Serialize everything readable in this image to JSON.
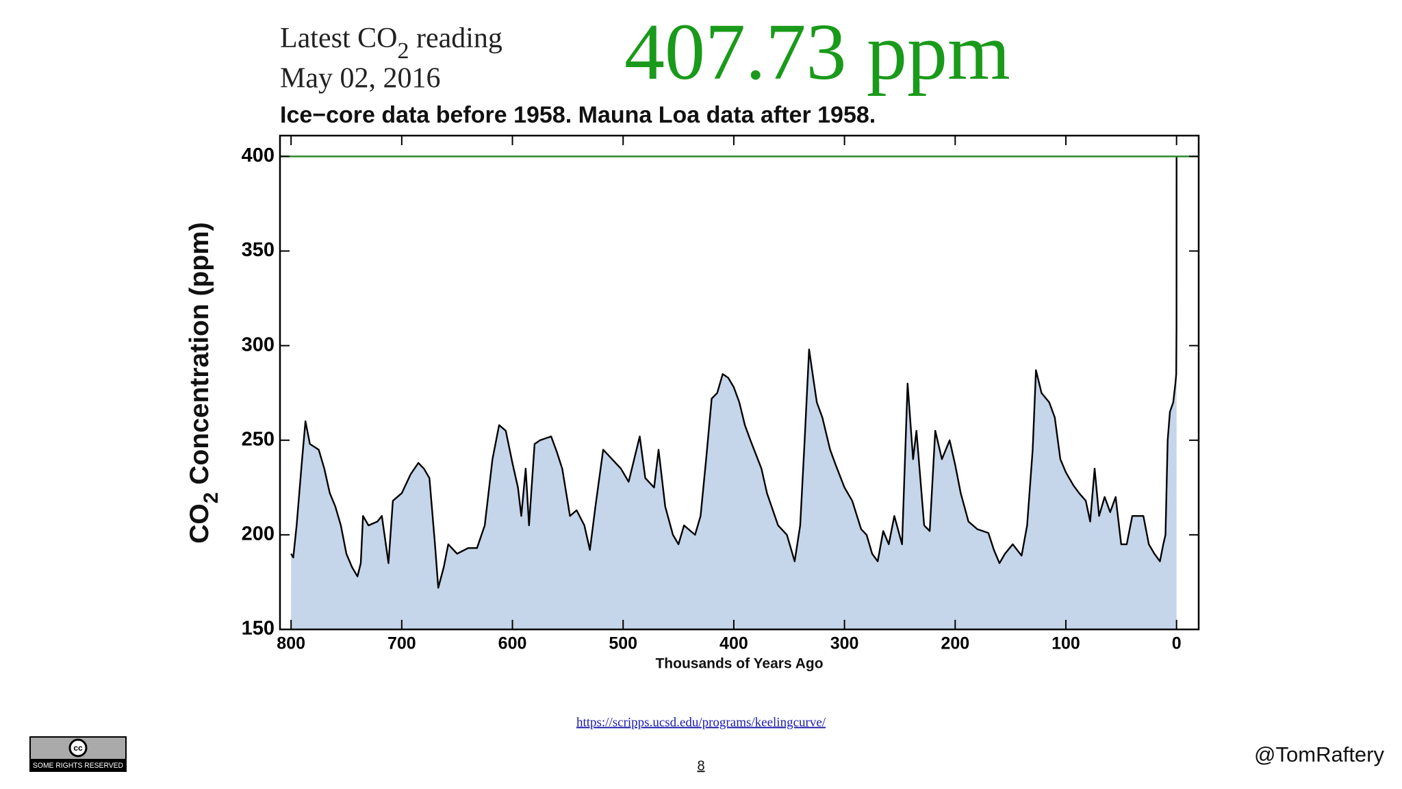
{
  "header": {
    "reading_label": {
      "prefix": "Latest CO",
      "subscript": "2",
      "suffix": " reading"
    },
    "date": "May 02, 2016",
    "reading": "407.73 ppm"
  },
  "chart_data": {
    "type": "area",
    "subtitle": "Ice−core data before 1958. Mauna Loa data after 1958.",
    "y_label": {
      "prefix": "CO",
      "subscript": "2",
      "suffix": " Concentration (ppm)"
    },
    "x_label": "Thousands of Years Ago",
    "x": [
      800,
      798,
      795,
      790,
      787,
      783,
      775,
      770,
      765,
      760,
      755,
      750,
      745,
      740,
      737,
      735,
      730,
      722,
      718,
      712,
      708,
      700,
      692,
      685,
      680,
      675,
      670,
      667,
      662,
      658,
      650,
      640,
      632,
      625,
      618,
      612,
      606,
      600,
      595,
      592,
      588,
      585,
      580,
      575,
      565,
      560,
      555,
      548,
      542,
      535,
      530,
      525,
      518,
      510,
      502,
      495,
      490,
      485,
      480,
      472,
      468,
      462,
      455,
      450,
      445,
      435,
      430,
      425,
      420,
      415,
      410,
      405,
      400,
      395,
      390,
      385,
      375,
      370,
      360,
      352,
      345,
      340,
      336,
      332,
      328,
      325,
      320,
      313,
      308,
      300,
      293,
      285,
      280,
      275,
      270,
      265,
      260,
      255,
      248,
      243,
      238,
      235,
      228,
      223,
      218,
      212,
      205,
      200,
      195,
      188,
      180,
      170,
      165,
      160,
      155,
      148,
      140,
      135,
      130,
      127,
      122,
      115,
      110,
      105,
      100,
      93,
      88,
      82,
      78,
      74,
      70,
      65,
      60,
      55,
      50,
      45,
      40,
      30,
      25,
      20,
      15,
      12,
      10,
      8,
      6,
      3,
      1,
      0.3,
      0.05,
      0
    ],
    "values": [
      190,
      188,
      205,
      240,
      260,
      248,
      245,
      235,
      222,
      215,
      205,
      190,
      183,
      178,
      185,
      210,
      205,
      207,
      210,
      185,
      218,
      222,
      232,
      238,
      235,
      230,
      195,
      172,
      183,
      195,
      190,
      193,
      193,
      205,
      240,
      258,
      255,
      238,
      225,
      210,
      235,
      205,
      248,
      250,
      252,
      244,
      235,
      210,
      213,
      205,
      192,
      215,
      245,
      240,
      235,
      228,
      240,
      252,
      230,
      225,
      245,
      215,
      200,
      195,
      205,
      200,
      210,
      240,
      272,
      275,
      285,
      283,
      278,
      270,
      258,
      250,
      235,
      222,
      205,
      200,
      186,
      205,
      250,
      298,
      282,
      270,
      262,
      245,
      237,
      225,
      218,
      203,
      200,
      190,
      186,
      202,
      195,
      210,
      195,
      280,
      240,
      255,
      205,
      202,
      255,
      240,
      250,
      237,
      222,
      207,
      203,
      201,
      192,
      185,
      190,
      195,
      189,
      205,
      245,
      287,
      275,
      270,
      262,
      240,
      233,
      226,
      222,
      218,
      207,
      235,
      210,
      220,
      212,
      220,
      195,
      195,
      210,
      210,
      195,
      190,
      186,
      195,
      200,
      250,
      265,
      270,
      280,
      285,
      310,
      400
    ],
    "line_color": "#000000",
    "fill_color": "#c5d5ea",
    "reference_line": 400,
    "reference_color": "#2a8a2a",
    "xlim": [
      810,
      -20
    ],
    "xticks": [
      800,
      700,
      600,
      500,
      400,
      300,
      200,
      100,
      0
    ],
    "ylim": [
      150,
      411
    ],
    "yticks": [
      150,
      200,
      250,
      300,
      350,
      400
    ]
  },
  "footer": {
    "source": "https://scripps.ucsd.edu/programs/keelingcurve/",
    "page": "8",
    "author": "@TomRaftery",
    "badge": {
      "icon": "cc",
      "text": "SOME RIGHTS RESERVED"
    }
  }
}
